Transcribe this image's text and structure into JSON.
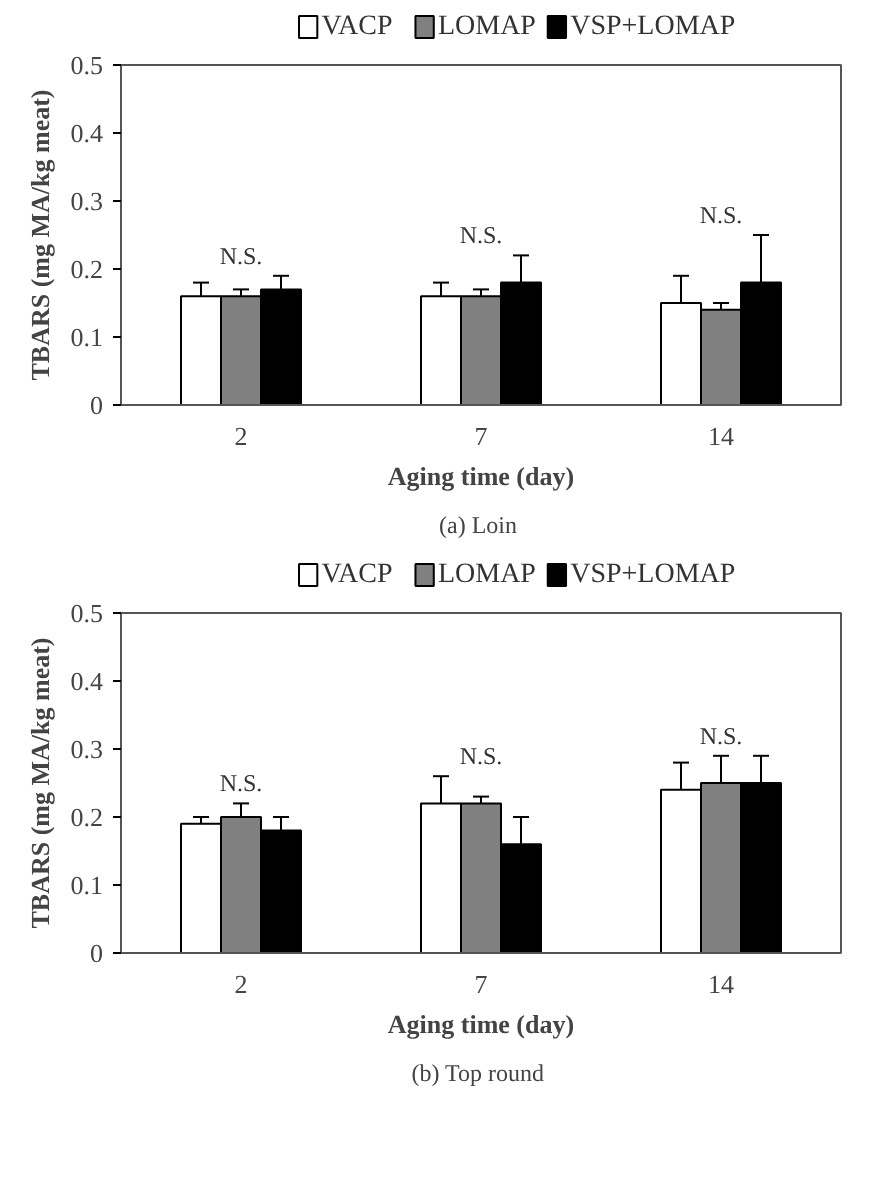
{
  "chart_data": [
    {
      "type": "bar",
      "title": "(a)  Loin",
      "xlabel": "Aging time (day)",
      "ylabel": "TBARS (mg MA/kg meat)",
      "categories": [
        "2",
        "7",
        "14"
      ],
      "ylim": [
        0,
        0.5
      ],
      "yticks": [
        {
          "value": 0,
          "label": "0"
        },
        0.1,
        0.2,
        0.3,
        0.4,
        0.5
      ],
      "grid": false,
      "legend": "top",
      "series": [
        {
          "name": "VACP",
          "color": "#ffffff",
          "values": [
            0.16,
            0.16,
            0.15
          ],
          "errors": [
            [
              0.16,
              0.18
            ],
            [
              0.16,
              0.18
            ],
            [
              0.15,
              0.19
            ]
          ]
        },
        {
          "name": "LOMAP",
          "color": "#808080",
          "values": [
            0.16,
            0.16,
            0.14
          ],
          "errors": [
            [
              0.16,
              0.17
            ],
            [
              0.16,
              0.17
            ],
            [
              0.14,
              0.15
            ]
          ]
        },
        {
          "name": "VSP+LOMAP",
          "color": "#000000",
          "values": [
            0.17,
            0.18,
            0.18
          ],
          "errors": [
            [
              0.17,
              0.19
            ],
            [
              0.18,
              0.22
            ],
            [
              0.18,
              0.25
            ]
          ]
        }
      ],
      "annotations": [
        "N.S.",
        "N.S.",
        "N.S."
      ]
    },
    {
      "type": "bar",
      "title": "(b)  Top round",
      "xlabel": "Aging time (day)",
      "ylabel": "TBARS (mg MA/kg meat)",
      "categories": [
        "2",
        "7",
        "14"
      ],
      "ylim": [
        0,
        0.5
      ],
      "yticks": [
        {
          "value": 0,
          "label": "0"
        },
        0.1,
        0.2,
        0.3,
        0.4,
        0.5
      ],
      "grid": false,
      "legend": "top",
      "series": [
        {
          "name": "VACP",
          "color": "#ffffff",
          "values": [
            0.19,
            0.22,
            0.24
          ],
          "errors": [
            [
              0.19,
              0.2
            ],
            [
              0.22,
              0.26
            ],
            [
              0.24,
              0.28
            ]
          ]
        },
        {
          "name": "LOMAP",
          "color": "#808080",
          "values": [
            0.2,
            0.22,
            0.25
          ],
          "errors": [
            [
              0.2,
              0.22
            ],
            [
              0.22,
              0.23
            ],
            [
              0.25,
              0.29
            ]
          ]
        },
        {
          "name": "VSP+LOMAP",
          "color": "#000000",
          "values": [
            0.18,
            0.16,
            0.25
          ],
          "errors": [
            [
              0.18,
              0.2
            ],
            [
              0.16,
              0.2
            ],
            [
              0.25,
              0.29
            ]
          ]
        }
      ],
      "annotations": [
        "N.S.",
        "N.S.",
        "N.S."
      ]
    }
  ]
}
